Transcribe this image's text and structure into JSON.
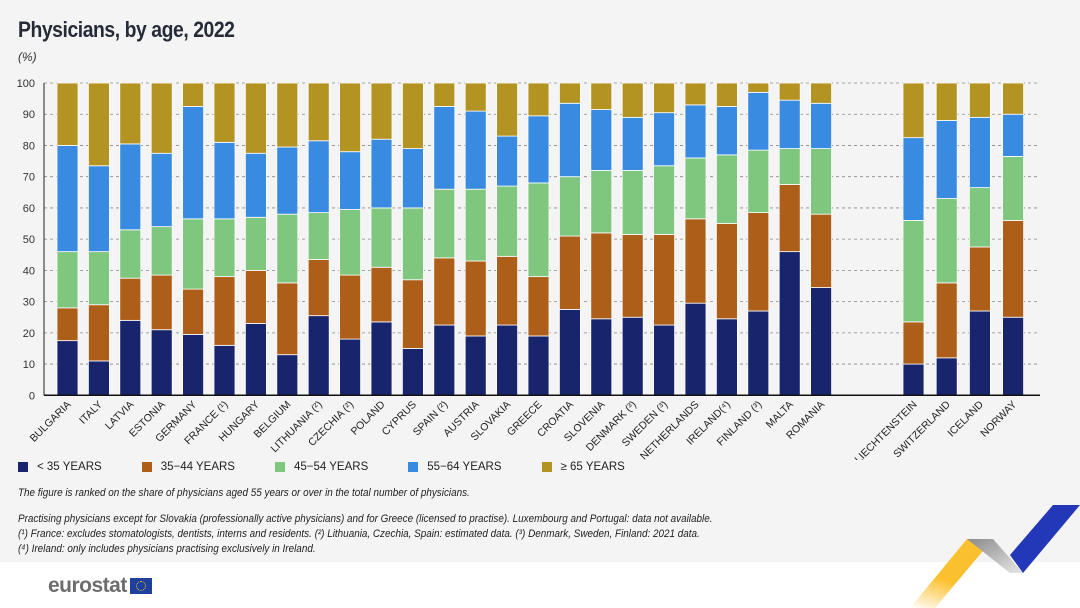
{
  "chart_data": {
    "type": "bar",
    "stacked": true,
    "title": "Physicians, by age, 2022",
    "unit": "(%)",
    "ylim": [
      0,
      100
    ],
    "yticks": [
      0,
      10,
      20,
      30,
      40,
      50,
      60,
      70,
      80,
      90,
      100
    ],
    "grid": true,
    "legend_position": "bottom",
    "categories": [
      "BULGARIA",
      "ITALY",
      "LATVIA",
      "ESTONIA",
      "GERMANY",
      "FRANCE (¹)",
      "HUNGARY",
      "BELGIUM",
      "LITHUANIA (²)",
      "CZECHIA (²)",
      "POLAND",
      "CYPRUS",
      "SPAIN (²)",
      "AUSTRIA",
      "SLOVAKIA",
      "GREECE",
      "CROATIA",
      "SLOVENIA",
      "DENMARK (³)",
      "SWEDEN (³)",
      "NETHERLANDS",
      "IRELAND(⁴)",
      "FINLAND (³)",
      "MALTA",
      "ROMANIA",
      "LIECHTENSTEIN",
      "SWITZERLAND",
      "ICELAND",
      "NORWAY"
    ],
    "series": [
      {
        "name": "< 35 YEARS",
        "color": "#18246b",
        "values": [
          17.5,
          11,
          24,
          21,
          19.5,
          16,
          23,
          13,
          25.5,
          18,
          23.5,
          15,
          22.5,
          19,
          22.5,
          19,
          27.5,
          24.5,
          25,
          22.5,
          29.5,
          24.5,
          27,
          46,
          34.5,
          10,
          12,
          27,
          25
        ]
      },
      {
        "name": "35−44 YEARS",
        "color": "#ad5e18",
        "values": [
          10.5,
          18,
          13.5,
          17.5,
          14.5,
          22,
          17,
          23,
          18,
          20.5,
          17.5,
          22,
          21.5,
          24,
          22,
          19,
          23.5,
          27.5,
          26.5,
          29,
          27,
          30.5,
          31.5,
          21.5,
          23.5,
          13.5,
          24,
          20.5,
          31
        ]
      },
      {
        "name": "45−54 YEARS",
        "color": "#7fc77e",
        "values": [
          18,
          17,
          15.5,
          15.5,
          22.5,
          18.5,
          17,
          22,
          15,
          21,
          19,
          23,
          22,
          23,
          22.5,
          30,
          19,
          20,
          20.5,
          22,
          19.5,
          22,
          20,
          11.5,
          21,
          32.5,
          27,
          19,
          20.5
        ]
      },
      {
        "name": "55−64 YEARS",
        "color": "#388be0",
        "values": [
          34,
          27.5,
          27.5,
          23.5,
          36,
          24.5,
          20.5,
          21.5,
          23,
          18.5,
          22,
          19,
          26.5,
          25,
          16,
          21.5,
          23.5,
          19.5,
          17,
          17,
          17,
          15.5,
          18.5,
          15.5,
          14.5,
          26.5,
          25,
          22.5,
          13.5
        ]
      },
      {
        "name": "≥ 65 YEARS",
        "color": "#b39322",
        "values": [
          20,
          26.5,
          19.5,
          22.5,
          7.5,
          19,
          22.5,
          20.5,
          18.5,
          22,
          18,
          21,
          7.5,
          9,
          17,
          10.5,
          6.5,
          8.5,
          11,
          9.5,
          7,
          7.5,
          3,
          5.5,
          6.5,
          17.5,
          12,
          11,
          10
        ]
      }
    ]
  },
  "notes": {
    "ranking": "The figure is ranked on the share of physicians aged 55 years or over in the total number of physicians.",
    "line1": "Practising physicians except for Slovakia (professionally active physicians) and for Greece (licensed to practise). Luxembourg and Portugal: data not available.",
    "line2": "(¹) France: excludes stomatologists, dentists, interns and residents. (²) Lithuania, Czechia, Spain: estimated data. (³) Denmark, Sweden, Finland: 2021 data.",
    "line3": "(⁴) Ireland: only includes physicians practising exclusively in Ireland."
  },
  "logo": {
    "text": "eurostat",
    "icon": "eu-flag-icon"
  }
}
